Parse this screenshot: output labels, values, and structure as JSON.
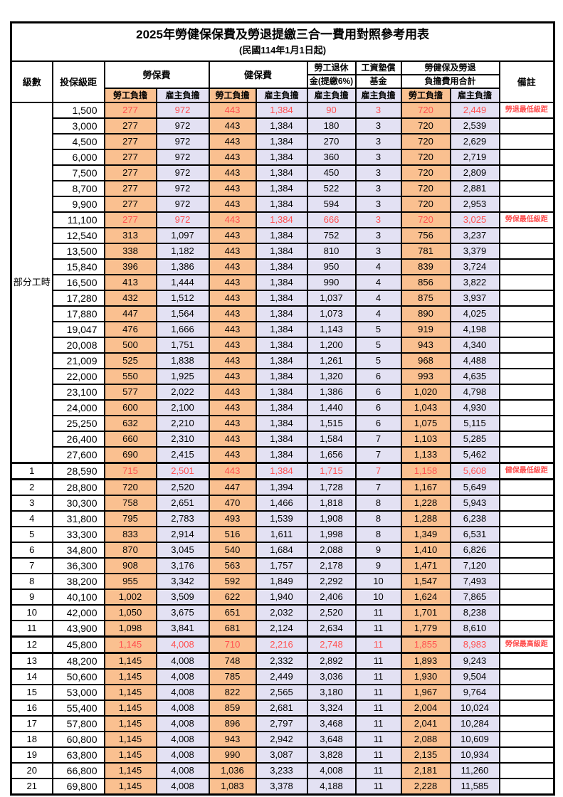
{
  "title": "2025年勞健保保費及勞退提繳三合一費用對照參考用表",
  "subtitle": "(民國114年1月1日起)",
  "colors": {
    "employee_bg": "#FAC090",
    "employer_bg": "#E3E1F3",
    "highlight_text": "#FF5050",
    "border": "#000000",
    "background": "#FFFFFF"
  },
  "header": {
    "level": "級數",
    "bracket": "投保級距",
    "labor": "勞保費",
    "health": "健保費",
    "pension_line1": "勞工退休",
    "pension_line2": "金(提繳6%)",
    "wage_line1": "工資墊償",
    "wage_line2": "基金",
    "total_line1": "勞健保及勞退",
    "total_line2": "負擔費用合計",
    "remark": "備註",
    "employee": "勞工負擔",
    "employer": "雇主負擔"
  },
  "table": {
    "part_time_label": "部分工時",
    "part_time_row_span": 23,
    "value_columns": [
      "labor-fee-employee",
      "labor-fee-employer",
      "health-fee-employee",
      "health-fee-employer",
      "pension-employer",
      "wage-fund-employer",
      "total-employee",
      "total-employer"
    ],
    "rows": [
      {
        "level": "",
        "bracket": "1,500",
        "values": [
          "277",
          "972",
          "443",
          "1,384",
          "90",
          "3",
          "720",
          "2,449"
        ],
        "remark": "勞退最低級距",
        "highlight": true
      },
      {
        "level": "",
        "bracket": "3,000",
        "values": [
          "277",
          "972",
          "443",
          "1,384",
          "180",
          "3",
          "720",
          "2,539"
        ],
        "remark": ""
      },
      {
        "level": "",
        "bracket": "4,500",
        "values": [
          "277",
          "972",
          "443",
          "1,384",
          "270",
          "3",
          "720",
          "2,629"
        ],
        "remark": ""
      },
      {
        "level": "",
        "bracket": "6,000",
        "values": [
          "277",
          "972",
          "443",
          "1,384",
          "360",
          "3",
          "720",
          "2,719"
        ],
        "remark": ""
      },
      {
        "level": "",
        "bracket": "7,500",
        "values": [
          "277",
          "972",
          "443",
          "1,384",
          "450",
          "3",
          "720",
          "2,809"
        ],
        "remark": ""
      },
      {
        "level": "",
        "bracket": "8,700",
        "values": [
          "277",
          "972",
          "443",
          "1,384",
          "522",
          "3",
          "720",
          "2,881"
        ],
        "remark": ""
      },
      {
        "level": "",
        "bracket": "9,900",
        "values": [
          "277",
          "972",
          "443",
          "1,384",
          "594",
          "3",
          "720",
          "2,953"
        ],
        "remark": ""
      },
      {
        "level": "",
        "bracket": "11,100",
        "values": [
          "277",
          "972",
          "443",
          "1,384",
          "666",
          "3",
          "720",
          "3,025"
        ],
        "remark": "勞保最低級距",
        "highlight": true
      },
      {
        "level": "",
        "bracket": "12,540",
        "values": [
          "313",
          "1,097",
          "443",
          "1,384",
          "752",
          "3",
          "756",
          "3,237"
        ],
        "remark": ""
      },
      {
        "level": "",
        "bracket": "13,500",
        "values": [
          "338",
          "1,182",
          "443",
          "1,384",
          "810",
          "3",
          "781",
          "3,379"
        ],
        "remark": ""
      },
      {
        "level": "",
        "bracket": "15,840",
        "values": [
          "396",
          "1,386",
          "443",
          "1,384",
          "950",
          "4",
          "839",
          "3,724"
        ],
        "remark": ""
      },
      {
        "level": "",
        "bracket": "16,500",
        "values": [
          "413",
          "1,444",
          "443",
          "1,384",
          "990",
          "4",
          "856",
          "3,822"
        ],
        "remark": ""
      },
      {
        "level": "",
        "bracket": "17,280",
        "values": [
          "432",
          "1,512",
          "443",
          "1,384",
          "1,037",
          "4",
          "875",
          "3,937"
        ],
        "remark": ""
      },
      {
        "level": "",
        "bracket": "17,880",
        "values": [
          "447",
          "1,564",
          "443",
          "1,384",
          "1,073",
          "4",
          "890",
          "4,025"
        ],
        "remark": ""
      },
      {
        "level": "",
        "bracket": "19,047",
        "values": [
          "476",
          "1,666",
          "443",
          "1,384",
          "1,143",
          "5",
          "919",
          "4,198"
        ],
        "remark": ""
      },
      {
        "level": "",
        "bracket": "20,008",
        "values": [
          "500",
          "1,751",
          "443",
          "1,384",
          "1,200",
          "5",
          "943",
          "4,340"
        ],
        "remark": ""
      },
      {
        "level": "",
        "bracket": "21,009",
        "values": [
          "525",
          "1,838",
          "443",
          "1,384",
          "1,261",
          "5",
          "968",
          "4,488"
        ],
        "remark": ""
      },
      {
        "level": "",
        "bracket": "22,000",
        "values": [
          "550",
          "1,925",
          "443",
          "1,384",
          "1,320",
          "6",
          "993",
          "4,635"
        ],
        "remark": ""
      },
      {
        "level": "",
        "bracket": "23,100",
        "values": [
          "577",
          "2,022",
          "443",
          "1,384",
          "1,386",
          "6",
          "1,020",
          "4,798"
        ],
        "remark": ""
      },
      {
        "level": "",
        "bracket": "24,000",
        "values": [
          "600",
          "2,100",
          "443",
          "1,384",
          "1,440",
          "6",
          "1,043",
          "4,930"
        ],
        "remark": ""
      },
      {
        "level": "",
        "bracket": "25,250",
        "values": [
          "632",
          "2,210",
          "443",
          "1,384",
          "1,515",
          "6",
          "1,075",
          "5,115"
        ],
        "remark": ""
      },
      {
        "level": "",
        "bracket": "26,400",
        "values": [
          "660",
          "2,310",
          "443",
          "1,384",
          "1,584",
          "7",
          "1,103",
          "5,285"
        ],
        "remark": ""
      },
      {
        "level": "",
        "bracket": "27,600",
        "values": [
          "690",
          "2,415",
          "443",
          "1,384",
          "1,656",
          "7",
          "1,133",
          "5,462"
        ],
        "remark": ""
      },
      {
        "level": "1",
        "bracket": "28,590",
        "values": [
          "715",
          "2,501",
          "443",
          "1,384",
          "1,715",
          "7",
          "1,158",
          "5,608"
        ],
        "remark": "健保最低級距",
        "highlight": true,
        "separator": true
      },
      {
        "level": "2",
        "bracket": "28,800",
        "values": [
          "720",
          "2,520",
          "447",
          "1,394",
          "1,728",
          "7",
          "1,167",
          "5,649"
        ],
        "remark": ""
      },
      {
        "level": "3",
        "bracket": "30,300",
        "values": [
          "758",
          "2,651",
          "470",
          "1,466",
          "1,818",
          "8",
          "1,228",
          "5,943"
        ],
        "remark": ""
      },
      {
        "level": "4",
        "bracket": "31,800",
        "values": [
          "795",
          "2,783",
          "493",
          "1,539",
          "1,908",
          "8",
          "1,288",
          "6,238"
        ],
        "remark": ""
      },
      {
        "level": "5",
        "bracket": "33,300",
        "values": [
          "833",
          "2,914",
          "516",
          "1,611",
          "1,998",
          "8",
          "1,349",
          "6,531"
        ],
        "remark": ""
      },
      {
        "level": "6",
        "bracket": "34,800",
        "values": [
          "870",
          "3,045",
          "540",
          "1,684",
          "2,088",
          "9",
          "1,410",
          "6,826"
        ],
        "remark": ""
      },
      {
        "level": "7",
        "bracket": "36,300",
        "values": [
          "908",
          "3,176",
          "563",
          "1,757",
          "2,178",
          "9",
          "1,471",
          "7,120"
        ],
        "remark": ""
      },
      {
        "level": "8",
        "bracket": "38,200",
        "values": [
          "955",
          "3,342",
          "592",
          "1,849",
          "2,292",
          "10",
          "1,547",
          "7,493"
        ],
        "remark": ""
      },
      {
        "level": "9",
        "bracket": "40,100",
        "values": [
          "1,002",
          "3,509",
          "622",
          "1,940",
          "2,406",
          "10",
          "1,624",
          "7,865"
        ],
        "remark": ""
      },
      {
        "level": "10",
        "bracket": "42,000",
        "values": [
          "1,050",
          "3,675",
          "651",
          "2,032",
          "2,520",
          "11",
          "1,701",
          "8,238"
        ],
        "remark": ""
      },
      {
        "level": "11",
        "bracket": "43,900",
        "values": [
          "1,098",
          "3,841",
          "681",
          "2,124",
          "2,634",
          "11",
          "1,779",
          "8,610"
        ],
        "remark": ""
      },
      {
        "level": "12",
        "bracket": "45,800",
        "values": [
          "1,145",
          "4,008",
          "710",
          "2,216",
          "2,748",
          "11",
          "1,855",
          "8,983"
        ],
        "remark": "勞保最高級距",
        "highlight": true,
        "separator": true
      },
      {
        "level": "13",
        "bracket": "48,200",
        "values": [
          "1,145",
          "4,008",
          "748",
          "2,332",
          "2,892",
          "11",
          "1,893",
          "9,243"
        ],
        "remark": ""
      },
      {
        "level": "14",
        "bracket": "50,600",
        "values": [
          "1,145",
          "4,008",
          "785",
          "2,449",
          "3,036",
          "11",
          "1,930",
          "9,504"
        ],
        "remark": ""
      },
      {
        "level": "15",
        "bracket": "53,000",
        "values": [
          "1,145",
          "4,008",
          "822",
          "2,565",
          "3,180",
          "11",
          "1,967",
          "9,764"
        ],
        "remark": ""
      },
      {
        "level": "16",
        "bracket": "55,400",
        "values": [
          "1,145",
          "4,008",
          "859",
          "2,681",
          "3,324",
          "11",
          "2,004",
          "10,024"
        ],
        "remark": ""
      },
      {
        "level": "17",
        "bracket": "57,800",
        "values": [
          "1,145",
          "4,008",
          "896",
          "2,797",
          "3,468",
          "11",
          "2,041",
          "10,284"
        ],
        "remark": ""
      },
      {
        "level": "18",
        "bracket": "60,800",
        "values": [
          "1,145",
          "4,008",
          "943",
          "2,942",
          "3,648",
          "11",
          "2,088",
          "10,609"
        ],
        "remark": ""
      },
      {
        "level": "19",
        "bracket": "63,800",
        "values": [
          "1,145",
          "4,008",
          "990",
          "3,087",
          "3,828",
          "11",
          "2,135",
          "10,934"
        ],
        "remark": ""
      },
      {
        "level": "20",
        "bracket": "66,800",
        "values": [
          "1,145",
          "4,008",
          "1,036",
          "3,233",
          "4,008",
          "11",
          "2,181",
          "11,260"
        ],
        "remark": ""
      },
      {
        "level": "21",
        "bracket": "69,800",
        "values": [
          "1,145",
          "4,008",
          "1,083",
          "3,378",
          "4,188",
          "11",
          "2,228",
          "11,585"
        ],
        "remark": ""
      }
    ]
  }
}
